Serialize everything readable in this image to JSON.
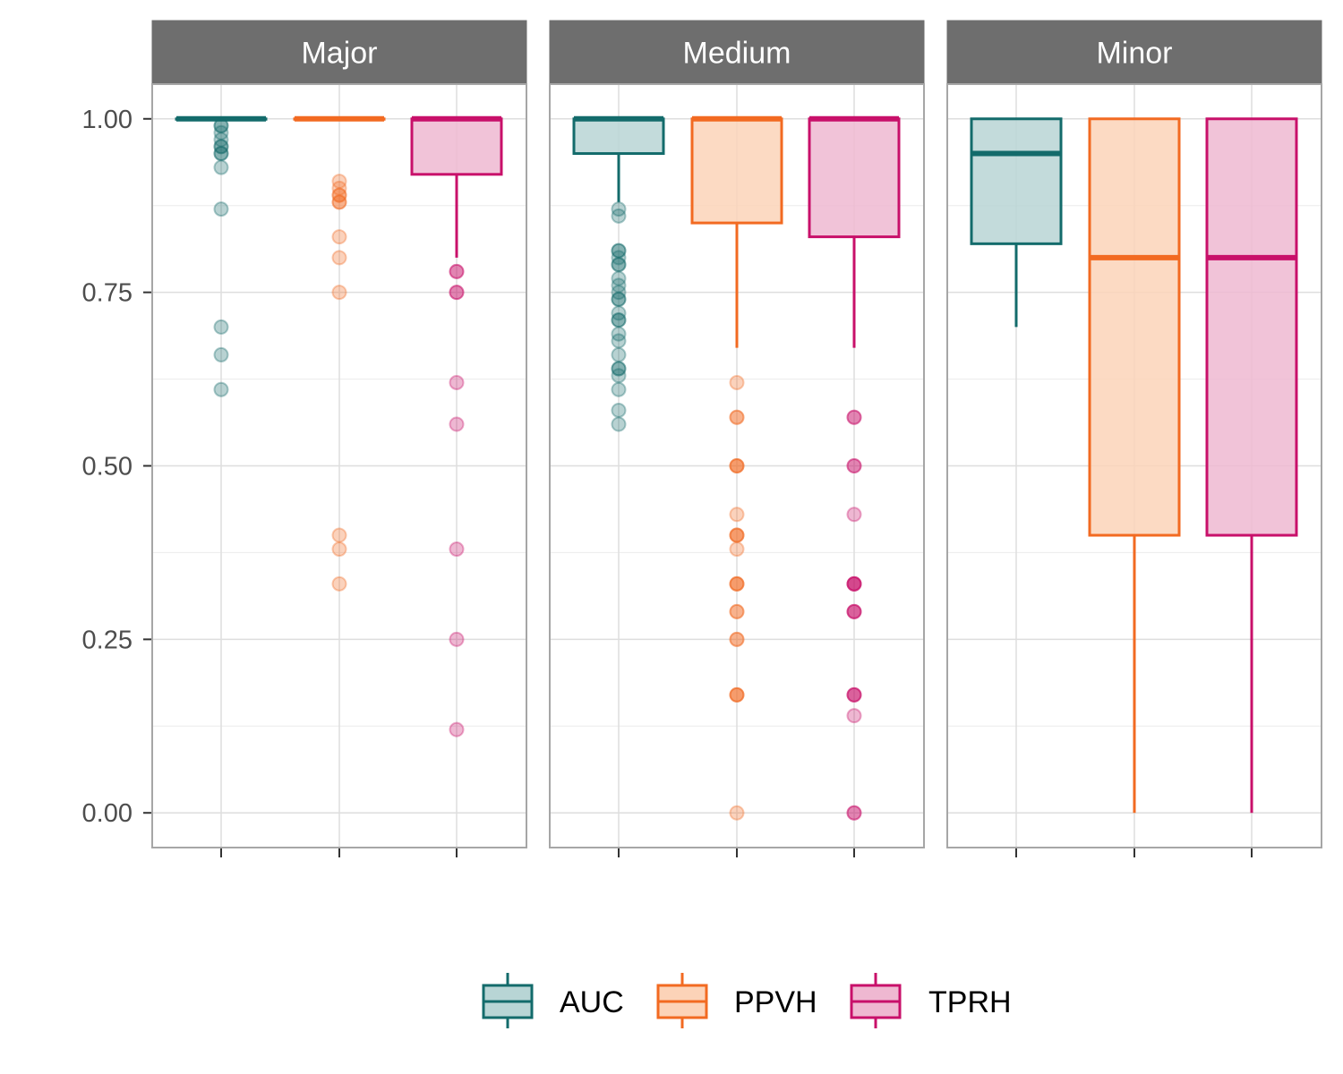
{
  "chart_data": {
    "type": "boxplot",
    "facet_by": "panel",
    "panels": [
      "Major",
      "Medium",
      "Minor"
    ],
    "series_names": [
      "AUC",
      "PPVH",
      "TPRH"
    ],
    "ylim": [
      -0.05,
      1.05
    ],
    "y_ticks": [
      0,
      0.25,
      0.5,
      0.75,
      1
    ],
    "y_tick_labels": [
      "0.00",
      "0.25",
      "0.50",
      "0.75",
      "1.00"
    ],
    "legend": {
      "position": "bottom",
      "items": [
        {
          "name": "AUC",
          "color": "#136b6b",
          "fill": "#b8d5d5"
        },
        {
          "name": "PPVH",
          "color": "#f26a21",
          "fill": "#fcd3b8"
        },
        {
          "name": "TPRH",
          "color": "#c8106a",
          "fill": "#efb8d1"
        }
      ]
    },
    "boxes": {
      "Major": {
        "AUC": {
          "q1": 1.0,
          "median": 1.0,
          "q3": 1.0,
          "lower": 1.0,
          "upper": 1.0,
          "outliers": [
            0.99,
            0.99,
            0.98,
            0.97,
            0.96,
            0.96,
            0.95,
            0.95,
            0.93,
            0.87,
            0.7,
            0.66,
            0.61
          ]
        },
        "PPVH": {
          "q1": 1.0,
          "median": 1.0,
          "q3": 1.0,
          "lower": 1.0,
          "upper": 1.0,
          "outliers": [
            0.91,
            0.9,
            0.89,
            0.89,
            0.88,
            0.88,
            0.83,
            0.8,
            0.75,
            0.4,
            0.38,
            0.33
          ]
        },
        "TPRH": {
          "q1": 0.92,
          "median": 1.0,
          "q3": 1.0,
          "lower": 0.8,
          "upper": 1.0,
          "outliers": [
            0.78,
            0.78,
            0.75,
            0.75,
            0.62,
            0.56,
            0.38,
            0.25,
            0.12
          ]
        }
      },
      "Medium": {
        "AUC": {
          "q1": 0.95,
          "median": 1.0,
          "q3": 1.0,
          "lower": 0.88,
          "upper": 1.0,
          "outliers": [
            0.87,
            0.86,
            0.81,
            0.81,
            0.8,
            0.79,
            0.79,
            0.77,
            0.76,
            0.75,
            0.74,
            0.74,
            0.72,
            0.71,
            0.71,
            0.69,
            0.68,
            0.66,
            0.64,
            0.64,
            0.63,
            0.61,
            0.58,
            0.56
          ]
        },
        "PPVH": {
          "q1": 0.85,
          "median": 1.0,
          "q3": 1.0,
          "lower": 0.67,
          "upper": 1.0,
          "outliers": [
            0.62,
            0.57,
            0.57,
            0.5,
            0.5,
            0.5,
            0.43,
            0.4,
            0.4,
            0.4,
            0.38,
            0.33,
            0.33,
            0.33,
            0.29,
            0.29,
            0.25,
            0.25,
            0.17,
            0.17,
            0.17,
            0.0
          ]
        },
        "TPRH": {
          "q1": 0.83,
          "median": 1.0,
          "q3": 1.0,
          "lower": 0.67,
          "upper": 1.0,
          "outliers": [
            0.57,
            0.57,
            0.5,
            0.5,
            0.43,
            0.33,
            0.33,
            0.33,
            0.33,
            0.29,
            0.29,
            0.29,
            0.17,
            0.17,
            0.17,
            0.14,
            0.0,
            0.0
          ]
        }
      },
      "Minor": {
        "AUC": {
          "q1": 0.82,
          "median": 0.95,
          "q3": 1.0,
          "lower": 0.7,
          "upper": 1.0,
          "outliers": []
        },
        "PPVH": {
          "q1": 0.4,
          "median": 0.8,
          "q3": 1.0,
          "lower": 0.0,
          "upper": 1.0,
          "outliers": []
        },
        "TPRH": {
          "q1": 0.4,
          "median": 0.8,
          "q3": 1.0,
          "lower": 0.0,
          "upper": 1.0,
          "outliers": []
        }
      }
    }
  }
}
